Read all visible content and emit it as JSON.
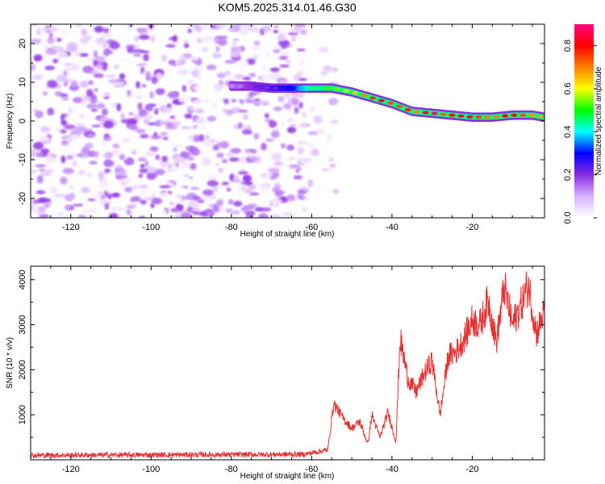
{
  "figure_title": "KOM5.2025.314.01.46.G30",
  "chart_data": [
    {
      "type": "heatmap",
      "name": "spectrogram",
      "xlabel": "Height of straight line (km)",
      "ylabel": "Frequency (Hz)",
      "xlim": [
        -130,
        -2
      ],
      "ylim": [
        -25,
        25
      ],
      "xticks": [
        -120,
        -100,
        -80,
        -60,
        -40,
        -20
      ],
      "yticks": [
        -20,
        -10,
        0,
        10,
        20
      ],
      "colorbar": {
        "label": "Normalized spectral amplitude",
        "range": [
          0,
          0.9
        ],
        "ticks": [
          0.0,
          0.2,
          0.4,
          0.6,
          0.8
        ],
        "tick_labels": [
          "0.0",
          "0.2",
          "0.4",
          "0.6",
          "0.8"
        ],
        "colors": [
          "#ffffff",
          "#d9b3ff",
          "#8a2be2",
          "#0000ff",
          "#00ffff",
          "#00ff00",
          "#ffff00",
          "#ff8000",
          "#ff0000",
          "#ff0080"
        ]
      },
      "noise_region": {
        "x_range": [
          -130,
          -62
        ],
        "amplitude": 0.2
      },
      "ridge_line": {
        "x": [
          -80,
          -75,
          -70,
          -65,
          -60,
          -55,
          -50,
          -45,
          -40,
          -35,
          -30,
          -25,
          -20,
          -15,
          -10,
          -5,
          -2
        ],
        "y": [
          9,
          9,
          8.5,
          8.5,
          8.5,
          8.5,
          7.5,
          6,
          4.5,
          2.5,
          2,
          1.5,
          1,
          1,
          1.5,
          1.5,
          1
        ],
        "amplitude": [
          0.15,
          0.2,
          0.25,
          0.3,
          0.45,
          0.55,
          0.65,
          0.75,
          0.8,
          0.75,
          0.85,
          0.8,
          0.9,
          0.75,
          0.85,
          0.8,
          0.7
        ]
      }
    },
    {
      "type": "line",
      "name": "snr",
      "xlabel": "Height of straight line (km)",
      "ylabel": "SNR (10 * v/v)",
      "xlim": [
        -130,
        -2
      ],
      "ylim": [
        0,
        4300
      ],
      "xticks": [
        -120,
        -100,
        -80,
        -60,
        -40,
        -20
      ],
      "yticks": [
        1000,
        2000,
        3000,
        4000
      ],
      "series": [
        {
          "name": "SNR",
          "color": "#e63232",
          "x": [
            -130,
            -62,
            -56,
            -54.5,
            -52,
            -50,
            -48,
            -46,
            -45,
            -43,
            -41,
            -39,
            -38,
            -36,
            -34,
            -32,
            -30,
            -28,
            -26,
            -24,
            -22,
            -20,
            -18,
            -16,
            -14,
            -12,
            -10,
            -8,
            -6,
            -4,
            -2
          ],
          "y": [
            100,
            120,
            220,
            1250,
            900,
            700,
            850,
            350,
            1000,
            500,
            1050,
            400,
            2700,
            1800,
            1500,
            1900,
            2200,
            1000,
            2300,
            2400,
            2700,
            3100,
            3000,
            3550,
            2600,
            3850,
            3000,
            3400,
            3900,
            2800,
            3300
          ]
        }
      ]
    }
  ]
}
